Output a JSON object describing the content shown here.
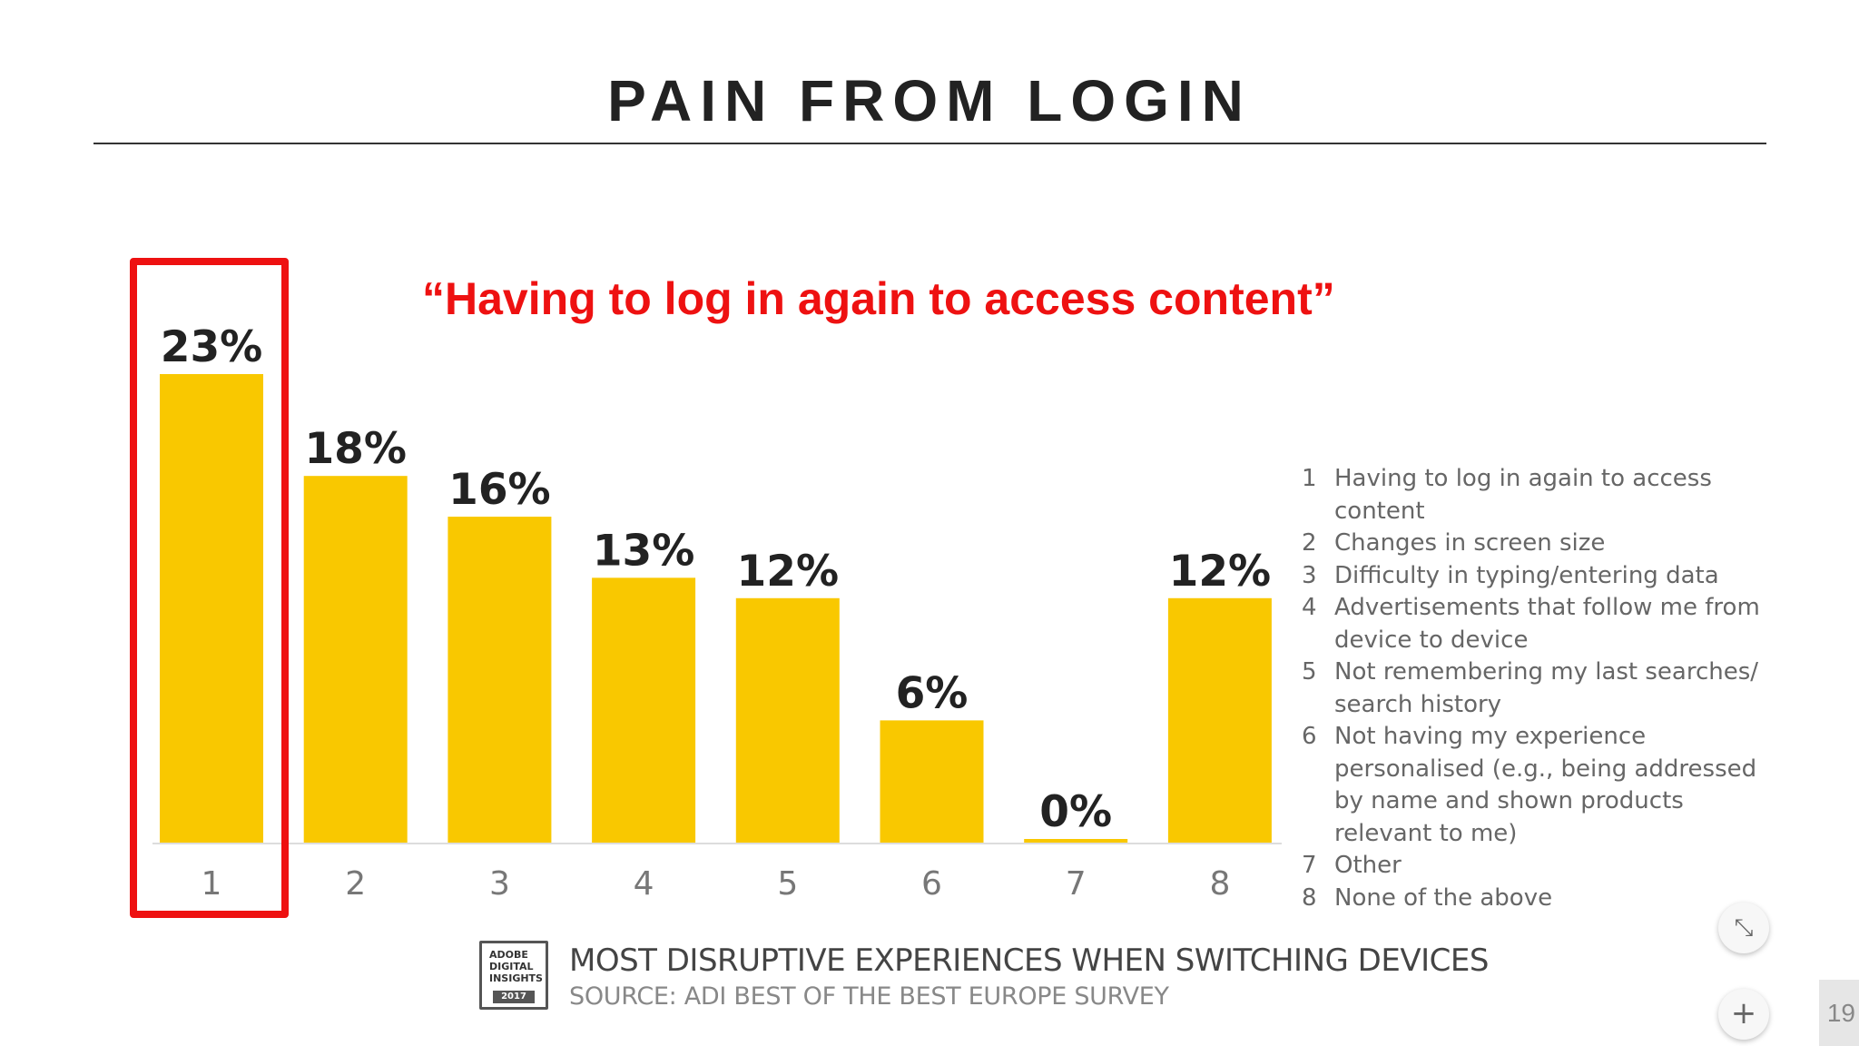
{
  "slide": {
    "title": "PAIN FROM LOGIN",
    "quote": "“Having to log in again to access content”",
    "page_number": "19"
  },
  "chart_data": {
    "type": "bar",
    "categories": [
      "1",
      "2",
      "3",
      "4",
      "5",
      "6",
      "7",
      "8"
    ],
    "values": [
      23,
      18,
      16,
      13,
      12,
      6,
      0,
      12
    ],
    "value_labels": [
      "23%",
      "18%",
      "16%",
      "13%",
      "12%",
      "6%",
      "0%",
      "12%"
    ],
    "title": "MOST DISRUPTIVE EXPERIENCES WHEN SWITCHING DEVICES",
    "subtitle": "SOURCE: ADI BEST OF THE BEST EUROPE SURVEY",
    "ylim": [
      0,
      23
    ],
    "bar_color": "#f9c800",
    "highlight_color": "#ee1111",
    "highlighted_category": "1",
    "legend": [
      {
        "num": "1",
        "text": "Having to log in again to access content"
      },
      {
        "num": "2",
        "text": "Changes in screen size"
      },
      {
        "num": "3",
        "text": "Difficulty in typing/entering data"
      },
      {
        "num": "4",
        "text": "Advertisements that follow me from device to device"
      },
      {
        "num": "5",
        "text": "Not remembering my last searches/ search history"
      },
      {
        "num": "6",
        "text": "Not having my experience personalised (e.g., being addressed by name and shown products relevant to me)"
      },
      {
        "num": "7",
        "text": "Other"
      },
      {
        "num": "8",
        "text": "None of the above"
      }
    ]
  },
  "badge": {
    "lines": [
      "ADOBE",
      "DIGITAL",
      "INSIGHTS"
    ],
    "year": "2017"
  },
  "controls": {
    "collapse_icon": "collapse-icon",
    "plus_icon": "plus-icon",
    "collapse_glyph": "⤡",
    "plus_glyph": "+"
  }
}
